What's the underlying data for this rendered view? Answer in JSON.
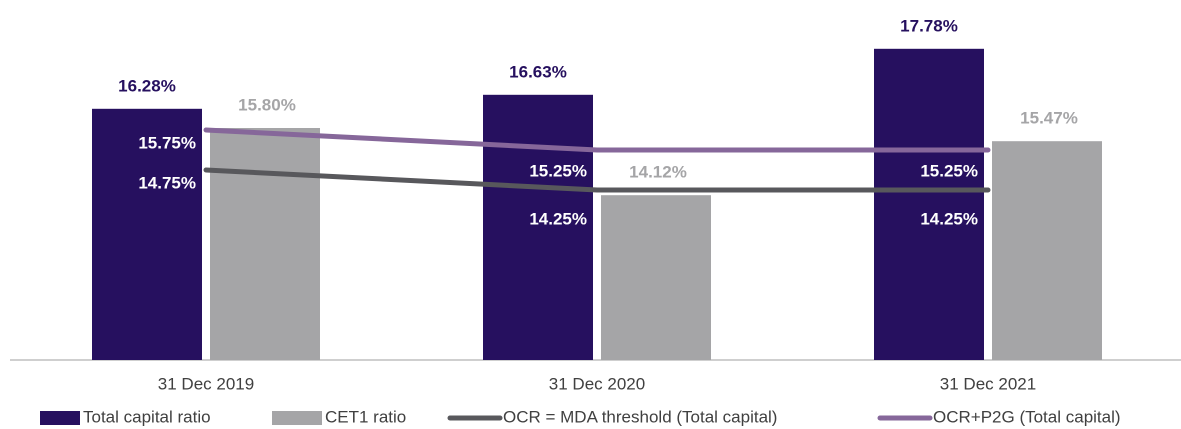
{
  "chart_data": {
    "type": "bar",
    "categories": [
      "31 Dec 2019",
      "31 Dec 2020",
      "31 Dec 2021"
    ],
    "series": [
      {
        "name": "Total capital ratio",
        "type": "bar",
        "color": "#26105f",
        "values": [
          16.28,
          16.63,
          17.78
        ],
        "value_labels": [
          "16.28%",
          "16.63%",
          "17.78%"
        ]
      },
      {
        "name": "CET1 ratio",
        "type": "bar",
        "color": "#a5a5a7",
        "values": [
          15.8,
          14.12,
          15.47
        ],
        "value_labels": [
          "15.80%",
          "14.12%",
          "15.47%"
        ]
      },
      {
        "name": "OCR = MDA threshold (Total capital)",
        "type": "line",
        "color": "#58585c",
        "values": [
          14.75,
          14.25,
          14.25
        ],
        "value_labels": [
          "14.75%",
          "14.25%",
          "14.25%"
        ]
      },
      {
        "name": "OCR+P2G (Total capital)",
        "type": "line",
        "color": "#86679a",
        "values": [
          15.75,
          15.25,
          15.25
        ],
        "value_labels": [
          "15.75%",
          "15.25%",
          "15.25%"
        ]
      }
    ],
    "ylim": [
      10,
      19
    ]
  }
}
